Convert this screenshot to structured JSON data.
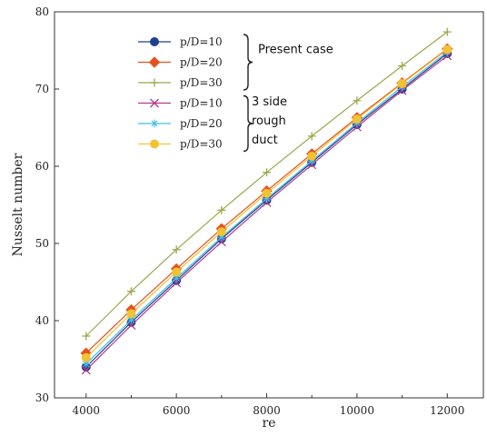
{
  "chart_data": {
    "type": "line",
    "xlabel": "re",
    "ylabel": "Nusselt number",
    "xlim": [
      3300,
      12800
    ],
    "ylim": [
      30,
      80
    ],
    "x_ticks": [
      4000,
      6000,
      8000,
      10000,
      12000
    ],
    "x_minor_ticks": [
      5000,
      7000,
      9000,
      11000
    ],
    "y_ticks": [
      30,
      40,
      50,
      60,
      70,
      80
    ],
    "grid": false,
    "legend_position": "top-left",
    "x": [
      4000,
      5000,
      6000,
      7000,
      8000,
      9000,
      10000,
      11000,
      12000
    ],
    "series": [
      {
        "name": "p/D=10",
        "marker": "circle",
        "color": "#1f3f8f",
        "values": [
          34.0,
          39.8,
          45.2,
          50.6,
          55.6,
          60.5,
          65.4,
          70.0,
          74.6
        ]
      },
      {
        "name": "p/D=20",
        "marker": "diamond",
        "color": "#e8501e",
        "values": [
          35.8,
          41.4,
          46.7,
          51.9,
          56.8,
          61.6,
          66.3,
          70.8,
          75.2
        ]
      },
      {
        "name": "p/D=30",
        "marker": "plus",
        "color": "#9aa84a",
        "values": [
          38.0,
          43.8,
          49.2,
          54.3,
          59.2,
          63.9,
          68.5,
          73.0,
          77.4
        ]
      },
      {
        "name": "p/D=10",
        "marker": "x",
        "color": "#b23a8a",
        "values": [
          33.6,
          39.4,
          44.9,
          50.2,
          55.3,
          60.2,
          65.1,
          69.8,
          74.3
        ]
      },
      {
        "name": "p/D=20",
        "marker": "star",
        "color": "#43c0e4",
        "values": [
          34.4,
          40.1,
          45.5,
          50.8,
          55.8,
          60.7,
          65.6,
          70.3,
          74.8
        ]
      },
      {
        "name": "p/D=30",
        "marker": "circle",
        "color": "#f2c233",
        "values": [
          35.2,
          40.9,
          46.3,
          51.5,
          56.5,
          61.3,
          66.1,
          70.7,
          75.1
        ]
      }
    ],
    "legend_groups": [
      {
        "label": "Present case",
        "series_range": [
          0,
          2
        ]
      },
      {
        "label": "3 side rough duct",
        "lines": [
          "3 side",
          "rough",
          "duct"
        ],
        "series_range": [
          3,
          5
        ]
      }
    ]
  }
}
